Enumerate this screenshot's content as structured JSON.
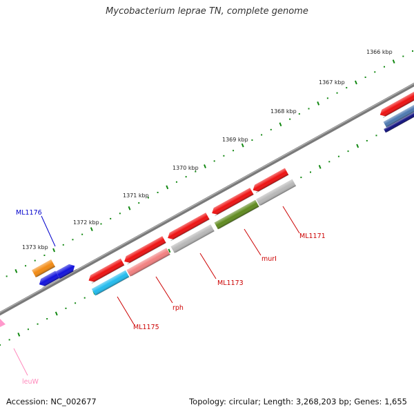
{
  "title": "Mycobacterium leprae TN, complete genome",
  "footer": {
    "accession": "Accession: NC_002677",
    "summary": "Topology: circular; Length: 3,268,203 bp; Genes: 1,655"
  },
  "scale_labels": [
    "1366 kbp",
    "1367 kbp",
    "1368 kbp",
    "1369 kbp",
    "1370 kbp",
    "1371 kbp",
    "1372 kbp",
    "1373 kbp"
  ],
  "gene_labels": [
    {
      "id": "ml1176",
      "text": "ML1176",
      "color": "#0000cc"
    },
    {
      "id": "ml1175",
      "text": "ML1175",
      "color": "#cc0000"
    },
    {
      "id": "rph",
      "text": "rph",
      "color": "#cc0000"
    },
    {
      "id": "ml1173",
      "text": "ML1173",
      "color": "#cc0000"
    },
    {
      "id": "muri",
      "text": "murI",
      "color": "#cc0000"
    },
    {
      "id": "ml1171",
      "text": "ML1171",
      "color": "#cc0000"
    },
    {
      "id": "leuw",
      "text": "leuW",
      "color": "#ff88bb"
    }
  ],
  "colors": {
    "backbone": "#7a7a7a",
    "tick": "#118811",
    "cds_red": "#ee1111",
    "cds_gray": "#b8b8b8",
    "cds_pink": "#f28080",
    "cds_cyan": "#22bbee",
    "cds_olive": "#5f8a1e",
    "cds_orange": "#f28a12",
    "cds_blue": "#1111dd",
    "cds_navy": "#101080",
    "cds_steel": "#4c78b0",
    "trna_pink": "#ff99cc"
  }
}
